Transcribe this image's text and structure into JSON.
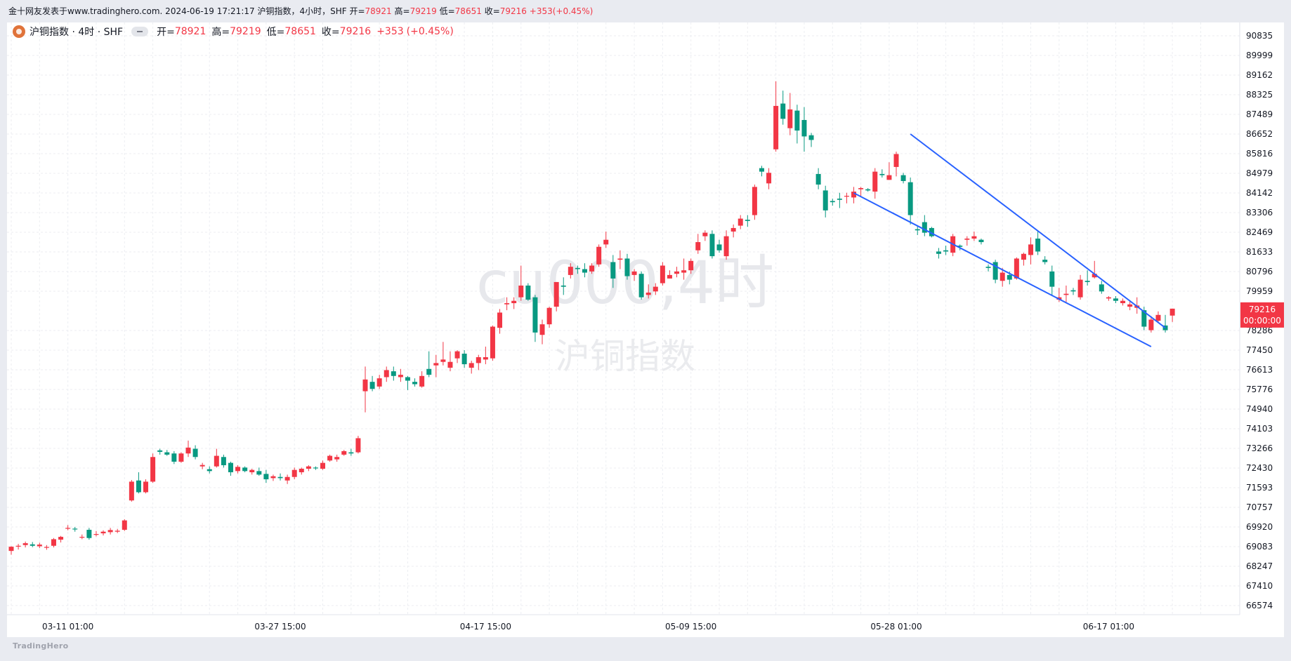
{
  "header": {
    "title_text": "金十网友发表于www.tradinghero.com. 2024-06-19 17:21:17 沪铜指数，4小时，SHF",
    "open_label": "开=",
    "open_value": "78921",
    "high_label": "高=",
    "high_value": "79219",
    "low_label": "低=",
    "low_value": "78651",
    "close_label": "收=",
    "close_value": "79216",
    "change_value": "+353",
    "change_pct": "(+0.45%)"
  },
  "legend": {
    "symbol": "沪铜指数 · 4时 · SHF",
    "open_label": "开=",
    "open_value": "78921",
    "high_label": "高=",
    "high_value": "79219",
    "low_label": "低=",
    "low_value": "78651",
    "close_label": "收=",
    "close_value": "79216",
    "change_value": "+353",
    "change_pct": "(+0.45%)"
  },
  "watermark": {
    "line1": "cu000,4时",
    "line2": "沪铜指数"
  },
  "footer": {
    "brand": "TradingHero"
  },
  "colors": {
    "up": "#f23645",
    "down": "#089981",
    "trendline": "#2962ff",
    "grid": "#eceef2",
    "price_tag": "#f23645"
  },
  "price_tag": {
    "price": "79216",
    "countdown": "00:00:00"
  },
  "chart_data": {
    "type": "candlestick",
    "symbol": "cu000",
    "interval": "4时",
    "y_axis_ticks": [
      90835,
      89999,
      89162,
      88325,
      87489,
      86652,
      85816,
      84979,
      84142,
      83306,
      82469,
      81633,
      80796,
      79959,
      78286,
      77450,
      76613,
      75776,
      74940,
      74103,
      73266,
      72430,
      71593,
      70757,
      69920,
      69083,
      68247,
      67410,
      66574
    ],
    "x_axis_labels": [
      {
        "index": 8,
        "label": "03-11 01:00"
      },
      {
        "index": 38,
        "label": "03-27 15:00"
      },
      {
        "index": 67,
        "label": "04-17 15:00"
      },
      {
        "index": 96,
        "label": "05-09 15:00"
      },
      {
        "index": 125,
        "label": "05-28 01:00"
      },
      {
        "index": 155,
        "label": "06-17 01:00"
      }
    ],
    "candles": [
      [
        68900,
        69100,
        68740,
        69080
      ],
      [
        69090,
        69200,
        68960,
        69120
      ],
      [
        69150,
        69300,
        69050,
        69230
      ],
      [
        69180,
        69280,
        69060,
        69120
      ],
      [
        69100,
        69250,
        69020,
        69170
      ],
      [
        69050,
        69150,
        68950,
        69070
      ],
      [
        69120,
        69450,
        69050,
        69400
      ],
      [
        69380,
        69540,
        69260,
        69500
      ],
      [
        69860,
        70000,
        69780,
        69880
      ],
      [
        69850,
        69920,
        69720,
        69820
      ],
      [
        69480,
        69600,
        69400,
        69500
      ],
      [
        69800,
        69880,
        69380,
        69450
      ],
      [
        69600,
        69750,
        69520,
        69620
      ],
      [
        69650,
        69780,
        69560,
        69720
      ],
      [
        69700,
        69880,
        69600,
        69790
      ],
      [
        69720,
        69840,
        69660,
        69760
      ],
      [
        69800,
        70250,
        69750,
        70200
      ],
      [
        71050,
        71920,
        71000,
        71850
      ],
      [
        71900,
        72250,
        71350,
        71400
      ],
      [
        71400,
        71950,
        71350,
        71850
      ],
      [
        71850,
        73050,
        71800,
        72900
      ],
      [
        73180,
        73250,
        73000,
        73120
      ],
      [
        73100,
        73200,
        72950,
        73000
      ],
      [
        73050,
        73150,
        72600,
        72700
      ],
      [
        72700,
        73100,
        72650,
        73050
      ],
      [
        73050,
        73600,
        72900,
        73300
      ],
      [
        73250,
        73400,
        72800,
        72900
      ],
      [
        72500,
        72650,
        72380,
        72560
      ],
      [
        72380,
        72500,
        72200,
        72300
      ],
      [
        72500,
        73250,
        72450,
        72950
      ],
      [
        72900,
        73000,
        72450,
        72550
      ],
      [
        72650,
        72700,
        72100,
        72250
      ],
      [
        72300,
        72550,
        72200,
        72480
      ],
      [
        72450,
        72500,
        72250,
        72300
      ],
      [
        72250,
        72400,
        72150,
        72350
      ],
      [
        72300,
        72450,
        72100,
        72150
      ],
      [
        72180,
        72350,
        71800,
        71950
      ],
      [
        72000,
        72150,
        71880,
        72080
      ],
      [
        72050,
        72200,
        71900,
        72000
      ],
      [
        71900,
        72150,
        71750,
        72050
      ],
      [
        72050,
        72450,
        71950,
        72350
      ],
      [
        72250,
        72450,
        72150,
        72400
      ],
      [
        72400,
        72550,
        72300,
        72500
      ],
      [
        72450,
        72500,
        72350,
        72420
      ],
      [
        72400,
        72750,
        72350,
        72650
      ],
      [
        72750,
        73000,
        72700,
        72950
      ],
      [
        72800,
        73000,
        72700,
        72900
      ],
      [
        73000,
        73200,
        72950,
        73150
      ],
      [
        73100,
        73250,
        72950,
        73050
      ],
      [
        73100,
        73800,
        73050,
        73700
      ],
      [
        75700,
        76750,
        74800,
        76200
      ],
      [
        76100,
        76350,
        75700,
        75800
      ],
      [
        75900,
        76400,
        75800,
        76250
      ],
      [
        76300,
        76750,
        76100,
        76600
      ],
      [
        76550,
        76750,
        76150,
        76350
      ],
      [
        76300,
        76650,
        76100,
        76400
      ],
      [
        76300,
        76350,
        75750,
        76150
      ],
      [
        76100,
        76250,
        75900,
        76000
      ],
      [
        75900,
        76550,
        75850,
        76350
      ],
      [
        76650,
        77400,
        76300,
        76400
      ],
      [
        76800,
        77250,
        76300,
        76900
      ],
      [
        76950,
        77800,
        76800,
        77050
      ],
      [
        76700,
        77400,
        76550,
        76950
      ],
      [
        77100,
        77450,
        76900,
        77400
      ],
      [
        77300,
        77450,
        76700,
        76850
      ],
      [
        76700,
        77000,
        76450,
        76900
      ],
      [
        76900,
        77250,
        76600,
        77150
      ],
      [
        77050,
        77600,
        76850,
        77150
      ],
      [
        77100,
        78500,
        77000,
        78450
      ],
      [
        78400,
        79200,
        78150,
        79050
      ],
      [
        79400,
        79700,
        79150,
        79450
      ],
      [
        79450,
        79700,
        79200,
        79550
      ],
      [
        79700,
        81050,
        79550,
        80200
      ],
      [
        80200,
        80300,
        79550,
        79600
      ],
      [
        79700,
        79800,
        77800,
        78200
      ],
      [
        78100,
        78750,
        77700,
        78550
      ],
      [
        78550,
        79300,
        78400,
        79250
      ],
      [
        79300,
        80350,
        79100,
        80350
      ],
      [
        80200,
        80550,
        79800,
        80150
      ],
      [
        80650,
        81150,
        80500,
        81000
      ],
      [
        80950,
        81050,
        80700,
        80900
      ],
      [
        80900,
        81150,
        80550,
        80750
      ],
      [
        80800,
        81150,
        80700,
        81050
      ],
      [
        81100,
        81950,
        81000,
        81850
      ],
      [
        81950,
        82500,
        81800,
        82150
      ],
      [
        81200,
        81500,
        80100,
        80500
      ],
      [
        81300,
        81700,
        80900,
        81350
      ],
      [
        81350,
        81550,
        80450,
        80600
      ],
      [
        80650,
        80900,
        80400,
        80800
      ],
      [
        80700,
        80800,
        79600,
        79700
      ],
      [
        79800,
        80250,
        79650,
        79900
      ],
      [
        79950,
        80300,
        79800,
        80150
      ],
      [
        80300,
        81200,
        80200,
        81050
      ],
      [
        80500,
        80850,
        80500,
        80650
      ],
      [
        80700,
        81000,
        80550,
        80800
      ],
      [
        80750,
        81350,
        80450,
        80850
      ],
      [
        80850,
        81350,
        80700,
        81250
      ],
      [
        81700,
        82400,
        81550,
        82050
      ],
      [
        82300,
        82550,
        82100,
        82450
      ],
      [
        82400,
        82550,
        81350,
        81450
      ],
      [
        81950,
        82150,
        81600,
        81700
      ],
      [
        81450,
        82550,
        81300,
        82300
      ],
      [
        82500,
        82800,
        82250,
        82650
      ],
      [
        82750,
        83200,
        82600,
        83050
      ],
      [
        83000,
        83200,
        82700,
        82950
      ],
      [
        83200,
        84500,
        83000,
        84400
      ],
      [
        85200,
        85300,
        84850,
        85050
      ],
      [
        84550,
        85200,
        84300,
        85000
      ],
      [
        86000,
        88900,
        85900,
        87850
      ],
      [
        87950,
        88500,
        87050,
        87300
      ],
      [
        86900,
        88400,
        86600,
        87700
      ],
      [
        87650,
        87900,
        86250,
        86800
      ],
      [
        87250,
        87800,
        85900,
        86550
      ],
      [
        86600,
        86700,
        86100,
        86400
      ],
      [
        84950,
        85200,
        84300,
        84500
      ],
      [
        84250,
        84450,
        83100,
        83400
      ],
      [
        83800,
        83900,
        83600,
        83750
      ],
      [
        83900,
        84150,
        83500,
        83850
      ],
      [
        84000,
        84150,
        83700,
        84020
      ],
      [
        83950,
        84400,
        83700,
        84200
      ],
      [
        84300,
        84400,
        84000,
        84350
      ],
      [
        84300,
        84350,
        84200,
        84250
      ],
      [
        84200,
        85200,
        83900,
        85050
      ],
      [
        84950,
        85150,
        84800,
        84900
      ],
      [
        84700,
        85450,
        84700,
        84900
      ],
      [
        85250,
        85900,
        84850,
        85800
      ],
      [
        84900,
        85000,
        84550,
        84650
      ],
      [
        84600,
        84800,
        82800,
        83200
      ],
      [
        82600,
        82750,
        82350,
        82550
      ],
      [
        82900,
        83200,
        82300,
        82450
      ],
      [
        82650,
        82700,
        82250,
        82300
      ],
      [
        81650,
        81800,
        81350,
        81550
      ],
      [
        81700,
        81900,
        81500,
        81650
      ],
      [
        81600,
        82400,
        81450,
        82300
      ],
      [
        81900,
        81950,
        81700,
        81850
      ],
      [
        82150,
        82300,
        81900,
        82200
      ],
      [
        82200,
        82500,
        82100,
        82300
      ],
      [
        82150,
        82200,
        81950,
        82050
      ],
      [
        81000,
        81100,
        80800,
        80950
      ],
      [
        81200,
        81300,
        80300,
        80450
      ],
      [
        80400,
        80950,
        80150,
        80750
      ],
      [
        80650,
        80800,
        80250,
        80450
      ],
      [
        80500,
        81400,
        80450,
        81350
      ],
      [
        81300,
        81600,
        81050,
        81550
      ],
      [
        81500,
        82250,
        81100,
        81950
      ],
      [
        82200,
        82500,
        81500,
        81650
      ],
      [
        81300,
        81450,
        81100,
        81200
      ],
      [
        80800,
        81050,
        79800,
        80150
      ],
      [
        79600,
        80100,
        79500,
        79700
      ],
      [
        79800,
        80200,
        79500,
        79850
      ],
      [
        80000,
        80100,
        79800,
        79950
      ],
      [
        79700,
        80650,
        79600,
        80450
      ],
      [
        80400,
        80850,
        80200,
        80350
      ],
      [
        80550,
        81250,
        80500,
        80700
      ],
      [
        80250,
        80400,
        79850,
        79950
      ],
      [
        79650,
        79750,
        79550,
        79700
      ],
      [
        79650,
        79750,
        79450,
        79550
      ],
      [
        79450,
        79650,
        79350,
        79550
      ],
      [
        79300,
        79550,
        79150,
        79400
      ],
      [
        79250,
        79700,
        79000,
        79350
      ],
      [
        79150,
        79300,
        78300,
        78450
      ],
      [
        78300,
        78900,
        78200,
        78750
      ],
      [
        78700,
        79100,
        78600,
        78950
      ],
      [
        78500,
        78950,
        78200,
        78300
      ],
      [
        78921,
        79219,
        78651,
        79216
      ]
    ],
    "trendlines": [
      {
        "from": [
          127,
          86652
        ],
        "to": [
          163,
          78400
        ]
      },
      {
        "from": [
          119,
          84142
        ],
        "to": [
          161,
          77600
        ]
      }
    ]
  }
}
